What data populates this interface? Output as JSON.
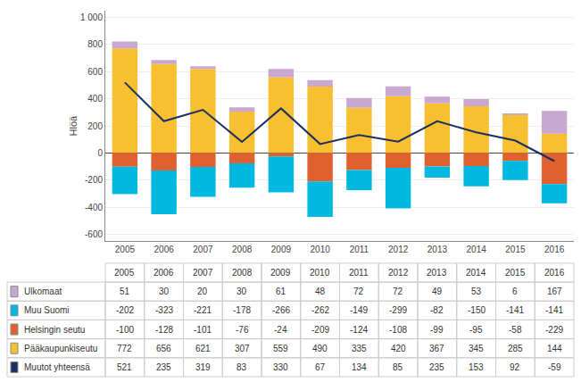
{
  "chart_data": {
    "type": "bar",
    "stacked": true,
    "categories": [
      "2005",
      "2006",
      "2007",
      "2008",
      "2009",
      "2010",
      "2011",
      "2012",
      "2013",
      "2014",
      "2015",
      "2016"
    ],
    "ylabel": "Hlöä",
    "ylim": [
      -650,
      1050
    ],
    "yticks": [
      -600,
      -400,
      -200,
      0,
      200,
      400,
      600,
      800,
      {
        "value": 1000,
        "label": "1 000"
      }
    ],
    "grid": true,
    "series": [
      {
        "name": "Ulkomaat",
        "type": "bar",
        "color": "#c8a8d0",
        "values": [
          51,
          30,
          20,
          30,
          61,
          48,
          72,
          72,
          49,
          53,
          6,
          167
        ]
      },
      {
        "name": "Muu Suomi",
        "type": "bar",
        "color": "#00b8e0",
        "values": [
          -202,
          -323,
          -221,
          -178,
          -266,
          -262,
          -149,
          -299,
          -82,
          -150,
          -141,
          -141
        ]
      },
      {
        "name": "Helsingin seutu",
        "type": "bar",
        "color": "#e06030",
        "values": [
          -100,
          -128,
          -101,
          -76,
          -24,
          -209,
          -124,
          -108,
          -99,
          -95,
          -58,
          -229
        ]
      },
      {
        "name": "Pääkaupunkiseutu",
        "type": "bar",
        "color": "#f8c030",
        "values": [
          772,
          656,
          621,
          307,
          559,
          490,
          335,
          420,
          367,
          345,
          285,
          144
        ]
      },
      {
        "name": "Muutot yhteensä",
        "type": "line",
        "color": "#1a3060",
        "values": [
          521,
          235,
          319,
          83,
          330,
          67,
          134,
          85,
          235,
          153,
          92,
          -59
        ]
      }
    ]
  }
}
